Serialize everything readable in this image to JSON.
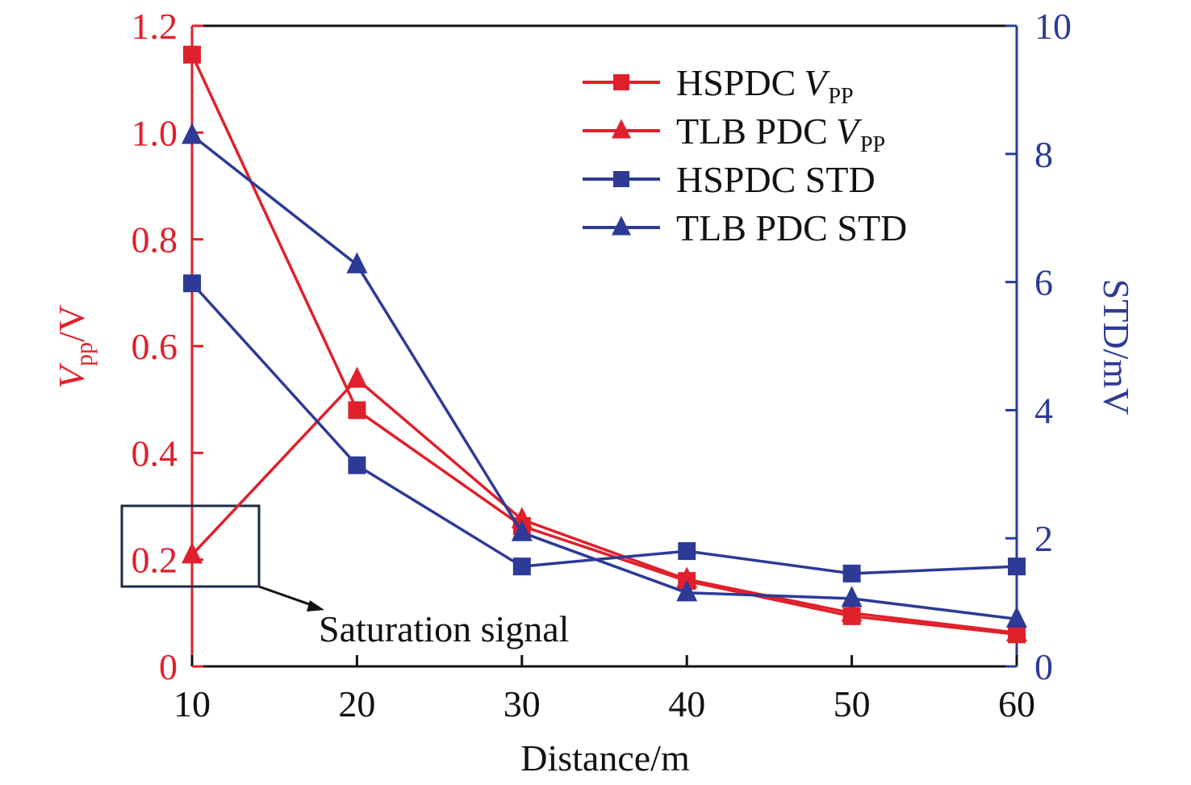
{
  "chart_data": {
    "type": "line",
    "title": "",
    "xlabel": "Distance/m",
    "ylabel_left": {
      "main": "V",
      "sub": "pp",
      "unit": "/V"
    },
    "ylabel_right": "STD/mV",
    "x": [
      10,
      20,
      30,
      40,
      50,
      60
    ],
    "xlim": [
      10,
      60
    ],
    "ylim_left": [
      0,
      1.2
    ],
    "ylim_right": [
      0,
      10
    ],
    "x_ticks": [
      "10",
      "20",
      "30",
      "40",
      "50",
      "60"
    ],
    "y_left_ticks": [
      "0",
      "0.2",
      "0.4",
      "0.6",
      "0.8",
      "1.0",
      "1.2"
    ],
    "y_right_ticks": [
      "0",
      "2",
      "4",
      "6",
      "8",
      "10"
    ],
    "grid": false,
    "legend_position": "top-right",
    "colors": {
      "left_axis": "#e0202a",
      "right_axis": "#2d3a96",
      "frame": "#111111",
      "annotation_box": "#1c2a44"
    },
    "series": [
      {
        "name": "HSPDC",
        "name_suffix": "V",
        "name_sub": "PP",
        "axis": "left",
        "marker": "square",
        "color": "#e0202a",
        "values": [
          1.146,
          0.48,
          0.263,
          0.16,
          0.094,
          0.06
        ]
      },
      {
        "name": "TLB PDC",
        "name_suffix": "V",
        "name_sub": "PP",
        "axis": "left",
        "marker": "triangle",
        "color": "#e0202a",
        "values": [
          0.209,
          0.538,
          0.275,
          0.163,
          0.1,
          0.063
        ]
      },
      {
        "name": "HSPDC STD",
        "name_suffix": "",
        "name_sub": "",
        "axis": "right",
        "marker": "square",
        "color": "#2d3a96",
        "values": [
          5.98,
          3.14,
          1.56,
          1.8,
          1.45,
          1.56
        ]
      },
      {
        "name": "TLB PDC STD",
        "name_suffix": "",
        "name_sub": "",
        "axis": "right",
        "marker": "triangle",
        "color": "#2d3a96",
        "values": [
          8.29,
          6.27,
          2.09,
          1.15,
          1.06,
          0.74
        ]
      }
    ],
    "annotations": [
      {
        "text": "Saturation signal",
        "target_x": 10,
        "target_y_left": 0.2
      }
    ]
  }
}
